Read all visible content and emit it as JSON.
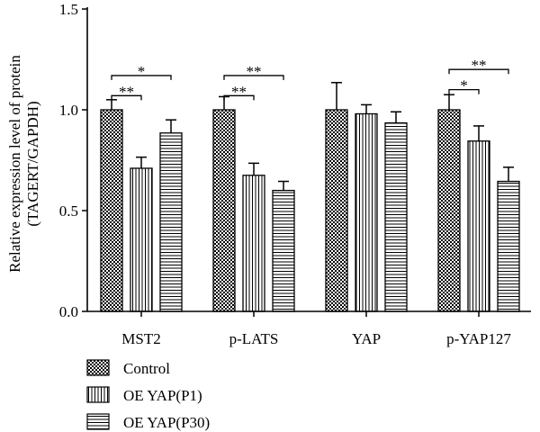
{
  "chart_data": {
    "type": "bar",
    "ylabel_line1": "Relative expression level of protein",
    "ylabel_line2": "(TAGERT/GAPDH)",
    "ylim": [
      0,
      1.5
    ],
    "yticks": [
      "0.0",
      "0.5",
      "1.0",
      "1.5"
    ],
    "categories": [
      "MST2",
      "p-LATS",
      "YAP",
      "p-YAP127"
    ],
    "series": [
      {
        "name": "Control",
        "pattern": "checker",
        "values": [
          1.0,
          1.0,
          1.0,
          1.0
        ],
        "errors": [
          0.05,
          0.065,
          0.135,
          0.075
        ]
      },
      {
        "name": "OE YAP(P1)",
        "pattern": "vertical",
        "values": [
          0.71,
          0.675,
          0.98,
          0.845
        ],
        "errors": [
          0.055,
          0.06,
          0.045,
          0.075
        ]
      },
      {
        "name": "OE YAP(P30)",
        "pattern": "horizontal",
        "values": [
          0.885,
          0.6,
          0.935,
          0.645
        ],
        "errors": [
          0.065,
          0.045,
          0.055,
          0.07
        ]
      }
    ],
    "significance": [
      {
        "category": 0,
        "from": 0,
        "to": 1,
        "label": "**",
        "y": 1.07
      },
      {
        "category": 0,
        "from": 0,
        "to": 2,
        "label": "*",
        "y": 1.17
      },
      {
        "category": 1,
        "from": 0,
        "to": 1,
        "label": "**",
        "y": 1.07
      },
      {
        "category": 1,
        "from": 0,
        "to": 2,
        "label": "**",
        "y": 1.17
      },
      {
        "category": 3,
        "from": 0,
        "to": 1,
        "label": "*",
        "y": 1.1
      },
      {
        "category": 3,
        "from": 0,
        "to": 2,
        "label": "**",
        "y": 1.2
      }
    ],
    "legend_position": "bottom-left"
  }
}
